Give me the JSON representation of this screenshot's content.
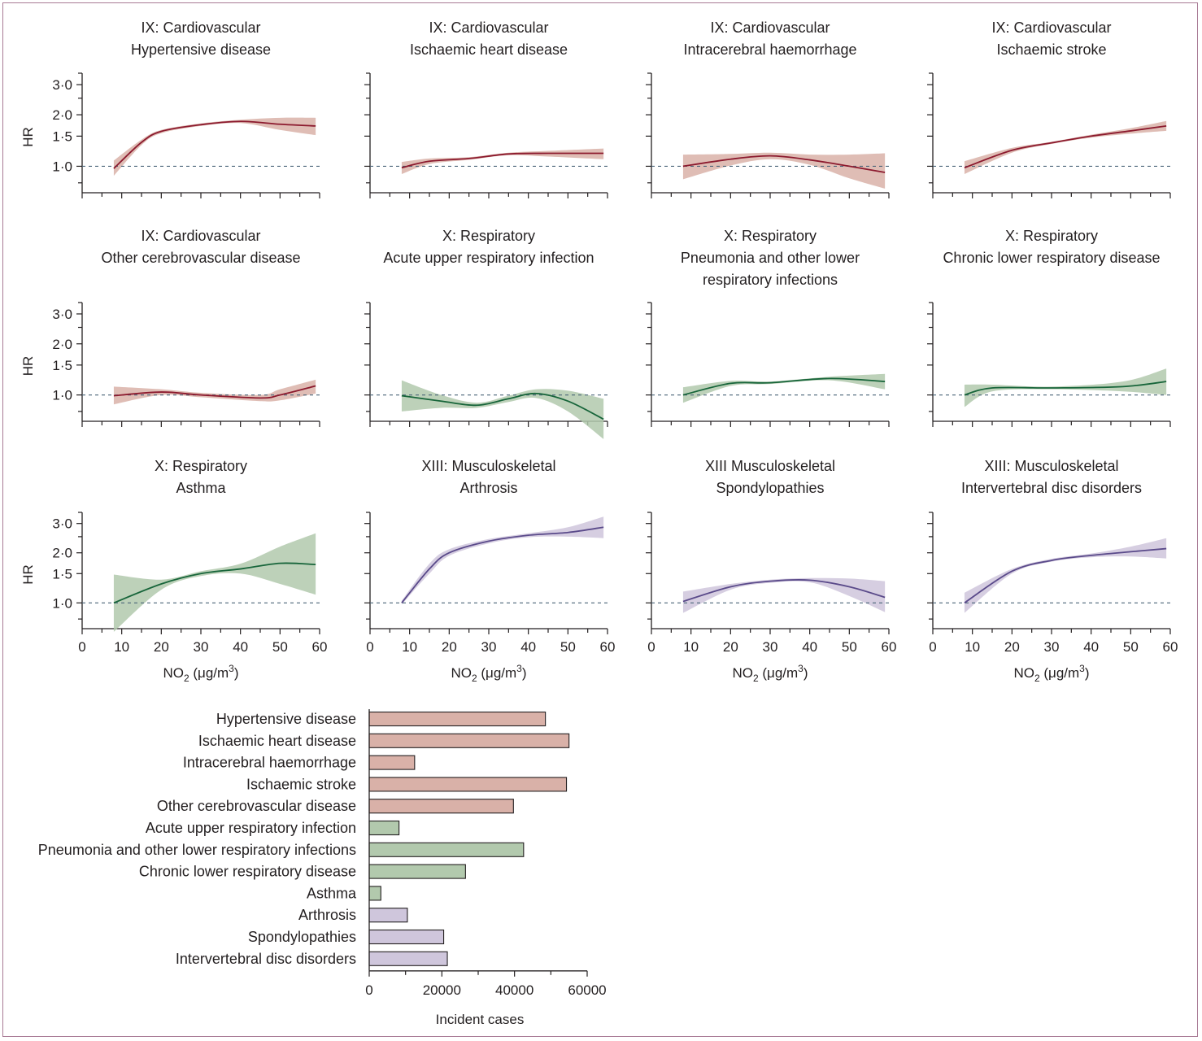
{
  "colors": {
    "cardio_line": "#8c1a2e",
    "cardio_band": "#d9b1a8",
    "resp_line": "#17653a",
    "resp_band": "#b2c9ad",
    "msk_line": "#5a4a8a",
    "msk_band": "#cfc6dc",
    "reference_line": "#4a6478"
  },
  "chart_data": [
    {
      "type": "line",
      "group": "cardio",
      "title_line1": "IX: Cardiovascular",
      "title_line2": "Hypertensive disease",
      "x": [
        8,
        15,
        20,
        30,
        40,
        50,
        59
      ],
      "values": [
        0.97,
        1.38,
        1.6,
        1.75,
        1.83,
        1.76,
        1.72
      ],
      "lower": [
        0.88,
        1.33,
        1.56,
        1.72,
        1.79,
        1.63,
        1.52
      ],
      "upper": [
        1.08,
        1.43,
        1.63,
        1.78,
        1.87,
        1.92,
        1.92
      ]
    },
    {
      "type": "line",
      "group": "cardio",
      "title_line1": "IX: Cardiovascular",
      "title_line2": "Ischaemic heart disease",
      "x": [
        8,
        15,
        25,
        35,
        45,
        59
      ],
      "values": [
        0.98,
        1.07,
        1.11,
        1.18,
        1.19,
        1.19
      ],
      "lower": [
        0.9,
        1.03,
        1.09,
        1.16,
        1.14,
        1.1
      ],
      "upper": [
        1.06,
        1.11,
        1.13,
        1.2,
        1.23,
        1.27
      ]
    },
    {
      "type": "line",
      "group": "cardio",
      "title_line1": "IX: Cardiovascular",
      "title_line2": "Intracerebral haemorrhage",
      "x": [
        8,
        20,
        30,
        40,
        50,
        59
      ],
      "values": [
        1.0,
        1.1,
        1.15,
        1.09,
        1.0,
        0.92
      ],
      "lower": [
        0.84,
        1.01,
        1.1,
        1.02,
        0.85,
        0.74
      ],
      "upper": [
        1.17,
        1.18,
        1.2,
        1.17,
        1.17,
        1.19
      ]
    },
    {
      "type": "line",
      "group": "cardio",
      "title_line1": "IX: Cardiovascular",
      "title_line2": "Ischaemic stroke",
      "x": [
        8,
        20,
        30,
        40,
        50,
        59
      ],
      "values": [
        0.98,
        1.24,
        1.37,
        1.5,
        1.61,
        1.72
      ],
      "lower": [
        0.9,
        1.2,
        1.35,
        1.47,
        1.55,
        1.61
      ],
      "upper": [
        1.07,
        1.28,
        1.39,
        1.53,
        1.67,
        1.84
      ]
    },
    {
      "type": "line",
      "group": "cardio",
      "title_line1": "IX: Cardiovascular",
      "title_line2": "Other cerebrovascular disease",
      "x": [
        8,
        20,
        30,
        45,
        50,
        59
      ],
      "values": [
        0.99,
        1.04,
        1.0,
        0.96,
        1.0,
        1.13
      ],
      "lower": [
        0.88,
        1.0,
        0.97,
        0.92,
        0.93,
        1.02
      ],
      "upper": [
        1.12,
        1.08,
        1.03,
        1.0,
        1.08,
        1.23
      ]
    },
    {
      "type": "line",
      "group": "resp",
      "title_line1": "X: Respiratory",
      "title_line2": "Acute upper respiratory infection",
      "x": [
        8,
        18,
        27,
        35,
        42,
        50,
        59
      ],
      "values": [
        0.99,
        0.92,
        0.87,
        0.95,
        1.02,
        0.92,
        0.72
      ],
      "lower": [
        0.8,
        0.84,
        0.84,
        0.91,
        0.96,
        0.8,
        0.55
      ],
      "upper": [
        1.22,
        1.0,
        0.9,
        0.99,
        1.08,
        1.06,
        0.95
      ]
    },
    {
      "type": "line",
      "group": "resp",
      "title_line1": "X: Respiratory",
      "title_line2": "Pneumonia and other lower",
      "title_line3": "respiratory infections",
      "x": [
        8,
        20,
        30,
        45,
        59
      ],
      "values": [
        1.0,
        1.17,
        1.18,
        1.25,
        1.2
      ],
      "lower": [
        0.9,
        1.13,
        1.16,
        1.22,
        1.08
      ],
      "upper": [
        1.11,
        1.21,
        1.2,
        1.28,
        1.33
      ]
    },
    {
      "type": "line",
      "group": "resp",
      "title_line1": "X: Respiratory",
      "title_line2": "Chronic lower respiratory disease",
      "x": [
        8,
        15,
        30,
        48,
        59
      ],
      "values": [
        1.0,
        1.1,
        1.1,
        1.12,
        1.2
      ],
      "lower": [
        0.85,
        1.05,
        1.08,
        1.05,
        1.0
      ],
      "upper": [
        1.15,
        1.15,
        1.12,
        1.2,
        1.43
      ]
    },
    {
      "type": "line",
      "group": "resp",
      "title_line1": "X: Respiratory",
      "title_line2": "Asthma",
      "x": [
        8,
        20,
        30,
        40,
        50,
        59
      ],
      "values": [
        1.0,
        1.3,
        1.5,
        1.6,
        1.73,
        1.7
      ],
      "lower": [
        0.67,
        1.2,
        1.45,
        1.5,
        1.3,
        1.12
      ],
      "upper": [
        1.48,
        1.38,
        1.55,
        1.72,
        2.18,
        2.62
      ]
    },
    {
      "type": "line",
      "group": "msk",
      "title_line1": "XIII: Musculoskeletal",
      "title_line2": "Arthrosis",
      "x": [
        8,
        15,
        20,
        30,
        40,
        50,
        59
      ],
      "values": [
        1.0,
        1.6,
        2.0,
        2.35,
        2.55,
        2.65,
        2.85
      ],
      "lower": [
        0.98,
        1.5,
        1.92,
        2.28,
        2.48,
        2.5,
        2.45
      ],
      "upper": [
        1.03,
        1.72,
        2.1,
        2.42,
        2.62,
        2.85,
        3.3
      ]
    },
    {
      "type": "line",
      "group": "msk",
      "title_line1": "XIII Musculoskeletal",
      "title_line2": "Spondylopathies",
      "x": [
        8,
        20,
        30,
        40,
        50,
        59
      ],
      "values": [
        1.02,
        1.25,
        1.35,
        1.37,
        1.25,
        1.08
      ],
      "lower": [
        0.87,
        1.2,
        1.32,
        1.33,
        1.1,
        0.88
      ],
      "upper": [
        1.17,
        1.3,
        1.38,
        1.41,
        1.4,
        1.35
      ]
    },
    {
      "type": "line",
      "group": "msk",
      "title_line1": "XIII: Musculoskeletal",
      "title_line2": "Intervertebral disc disorders",
      "x": [
        8,
        20,
        30,
        40,
        50,
        59
      ],
      "values": [
        1.0,
        1.55,
        1.8,
        1.93,
        2.03,
        2.12
      ],
      "lower": [
        0.87,
        1.5,
        1.77,
        1.88,
        1.9,
        1.85
      ],
      "upper": [
        1.15,
        1.6,
        1.84,
        1.98,
        2.18,
        2.45
      ]
    },
    {
      "type": "bar",
      "orientation": "horizontal",
      "categories": [
        "Hypertensive disease",
        "Ischaemic heart disease",
        "Intracerebral haemorrhage",
        "Ischaemic stroke",
        "Other cerebrovascular disease",
        "Acute upper respiratory infection",
        "Pneumonia and other lower respiratory infections",
        "Chronic lower respiratory disease",
        "Asthma",
        "Arthrosis",
        "Spondylopathies",
        "Intervertebral disc disorders"
      ],
      "groups": [
        "cardio",
        "cardio",
        "cardio",
        "cardio",
        "cardio",
        "resp",
        "resp",
        "resp",
        "resp",
        "msk",
        "msk",
        "msk"
      ],
      "values": [
        48500,
        55000,
        12500,
        54300,
        39700,
        8200,
        42500,
        26500,
        3200,
        10500,
        20500,
        21500
      ],
      "xlabel": "Incident cases",
      "xticks": [
        "0",
        "20000",
        "40000",
        "60000"
      ],
      "xlim": [
        0,
        60000
      ]
    }
  ],
  "axes": {
    "ylabel": "HR",
    "yticks": [
      "1·0",
      "1·5",
      "2·0",
      "3·0"
    ],
    "xticks": [
      "0",
      "10",
      "20",
      "30",
      "40",
      "50",
      "60"
    ],
    "xlabel_main": "NO",
    "xlabel_sub": "2",
    "xlabel_units": " (μg/m",
    "xlabel_sup": "3",
    "xlabel_close": ")",
    "xlim": [
      0,
      60
    ],
    "ylim": [
      0.7,
      3.5
    ],
    "yscale": "log",
    "reference_hr": 1.0
  }
}
